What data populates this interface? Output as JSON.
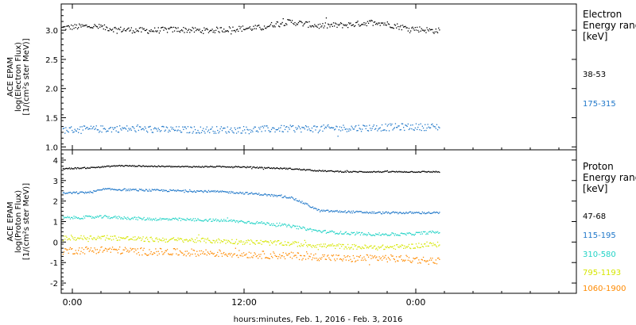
{
  "figure": {
    "xlabel": "hours:minutes, Feb.  1, 2016 - Feb.  3, 2016",
    "x_ticks": [
      "0:00",
      "12:00",
      "0:00"
    ]
  },
  "chart_data": [
    {
      "type": "scatter",
      "ylabel_lines": [
        "ACE EPAM",
        "log(Electron Flux)",
        "[1/(cm²s ster MeV)]"
      ],
      "legend": {
        "lines": [
          "Electron",
          "Energy range",
          "[keV]"
        ]
      },
      "x_hours": [
        0,
        36
      ],
      "data_x_hours": [
        0.1,
        26.4
      ],
      "ylim": [
        0.95,
        3.45
      ],
      "yticks": [
        1.0,
        1.5,
        2.0,
        2.5,
        3.0
      ],
      "ytick_labels": [
        "1.0",
        "1.5",
        "2.0",
        "2.5",
        "3.0"
      ],
      "grid": false,
      "series": [
        {
          "name": "38-53",
          "color": "#000000",
          "x": [
            0,
            2,
            4,
            6,
            8,
            10,
            12,
            14,
            15,
            16,
            18,
            20,
            22,
            24,
            26
          ],
          "y": [
            3.05,
            3.08,
            3.02,
            3.0,
            3.02,
            3.0,
            3.03,
            3.05,
            3.12,
            3.15,
            3.08,
            3.1,
            3.15,
            3.05,
            3.0
          ],
          "noise": 0.05
        },
        {
          "name": "175-315",
          "color": "#1f77c9",
          "x": [
            0,
            4,
            8,
            12,
            16,
            20,
            24,
            26
          ],
          "y": [
            1.3,
            1.32,
            1.3,
            1.3,
            1.32,
            1.33,
            1.35,
            1.35
          ],
          "noise": 0.06
        }
      ]
    },
    {
      "type": "scatter",
      "ylabel_lines": [
        "ACE EPAM",
        "log(Proton Flux)",
        "[1/(cm²s ster MeV)]"
      ],
      "legend": {
        "lines": [
          "Proton",
          "Energy range",
          "[keV]"
        ]
      },
      "x_hours": [
        0,
        36
      ],
      "data_x_hours": [
        0.1,
        26.4
      ],
      "ylim": [
        -2.5,
        4.5
      ],
      "yticks": [
        -2,
        -1,
        0,
        1,
        2,
        3,
        4
      ],
      "ytick_labels": [
        "-2",
        "-1",
        "0",
        "1",
        "2",
        "3",
        "4"
      ],
      "grid": false,
      "series": [
        {
          "name": "47-68",
          "color": "#000000",
          "x": [
            0,
            2,
            4,
            8,
            12,
            14,
            16,
            18,
            20,
            24,
            26
          ],
          "y": [
            3.6,
            3.65,
            3.75,
            3.7,
            3.7,
            3.65,
            3.6,
            3.5,
            3.45,
            3.45,
            3.45
          ],
          "noise": 0.03
        },
        {
          "name": "115-195",
          "color": "#1f77c9",
          "x": [
            0,
            2,
            3,
            6,
            10,
            12,
            14,
            16,
            17,
            18,
            20,
            22,
            24,
            26
          ],
          "y": [
            2.4,
            2.45,
            2.6,
            2.55,
            2.5,
            2.45,
            2.35,
            2.2,
            1.9,
            1.55,
            1.5,
            1.45,
            1.45,
            1.45
          ],
          "noise": 0.05
        },
        {
          "name": "310-580",
          "color": "#22d3c6",
          "x": [
            0,
            3,
            6,
            10,
            12,
            14,
            16,
            18,
            20,
            22,
            24,
            26
          ],
          "y": [
            1.2,
            1.25,
            1.15,
            1.1,
            1.05,
            0.95,
            0.8,
            0.55,
            0.45,
            0.4,
            0.4,
            0.5
          ],
          "noise": 0.07
        },
        {
          "name": "795-1193",
          "color": "#d6e600",
          "x": [
            0,
            3,
            6,
            10,
            12,
            14,
            16,
            18,
            20,
            22,
            24,
            26
          ],
          "y": [
            0.2,
            0.25,
            0.15,
            0.1,
            0.05,
            0.0,
            -0.05,
            -0.15,
            -0.2,
            -0.25,
            -0.2,
            -0.1
          ],
          "noise": 0.12
        },
        {
          "name": "1060-1900",
          "color": "#ff8a00",
          "x": [
            0,
            3,
            6,
            10,
            12,
            14,
            16,
            18,
            20,
            22,
            24,
            26
          ],
          "y": [
            -0.4,
            -0.35,
            -0.45,
            -0.5,
            -0.55,
            -0.6,
            -0.65,
            -0.7,
            -0.8,
            -0.75,
            -0.8,
            -0.9
          ],
          "noise": 0.18
        }
      ]
    }
  ]
}
